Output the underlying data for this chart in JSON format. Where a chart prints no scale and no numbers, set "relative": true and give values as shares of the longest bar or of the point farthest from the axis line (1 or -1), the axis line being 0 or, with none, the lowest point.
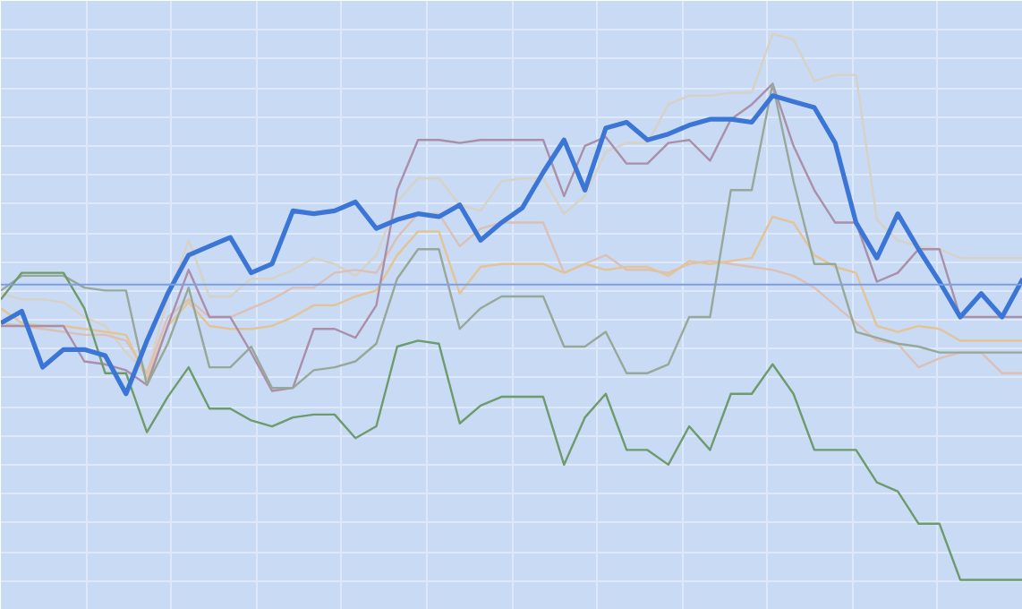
{
  "chart_data": {
    "type": "line",
    "relative": true,
    "grid": true,
    "ref_lines": [
      {
        "axis": "y",
        "value": 0,
        "color": "#7b9fe2"
      }
    ],
    "categories": [
      null,
      null,
      null,
      null,
      null,
      null,
      null,
      null,
      null,
      null,
      null,
      null,
      null,
      null,
      null,
      null,
      null,
      null,
      null,
      null,
      null,
      null,
      null,
      null,
      null,
      null,
      null,
      null,
      null,
      null,
      null,
      null,
      null,
      null,
      null,
      null,
      null,
      null,
      null,
      null,
      null,
      null,
      null,
      null,
      null,
      null,
      null,
      null,
      null,
      null
    ],
    "series": [
      {
        "color": "#d6d2c6",
        "values": [
          -0.03,
          -0.05,
          -0.05,
          -0.06,
          -0.11,
          -0.14,
          -0.23,
          -0.3,
          -0.05,
          0.15,
          -0.04,
          -0.04,
          0.02,
          0.02,
          0.05,
          0.09,
          0.07,
          0.03,
          0.1,
          0.28,
          0.36,
          0.36,
          0.27,
          0.25,
          0.35,
          0.36,
          0.36,
          0.24,
          0.3,
          0.45,
          0.48,
          0.48,
          0.61,
          0.64,
          0.64,
          0.65,
          0.65,
          0.85,
          0.83,
          0.69,
          0.71,
          0.71,
          0.22,
          0.15,
          0.13,
          0.12,
          0.09,
          0.09,
          0.09,
          0.09
        ]
      },
      {
        "color": "#dcc0b6",
        "values": [
          -0.13,
          -0.14,
          -0.15,
          -0.16,
          -0.17,
          -0.17,
          -0.19,
          -0.3,
          -0.11,
          -0.05,
          -0.11,
          -0.11,
          -0.08,
          -0.05,
          -0.01,
          -0.01,
          0.04,
          0.05,
          0.04,
          0.16,
          0.24,
          0.24,
          0.13,
          0.19,
          0.21,
          0.21,
          0.21,
          0.04,
          0.07,
          0.1,
          0.05,
          0.05,
          0.04,
          0.07,
          0.08,
          0.07,
          0.06,
          0.05,
          0.03,
          -0.01,
          -0.07,
          -0.13,
          -0.19,
          -0.2,
          -0.28,
          -0.25,
          -0.23,
          -0.23,
          -0.3,
          -0.3
        ]
      },
      {
        "color": "#e2c496",
        "values": [
          -0.08,
          -0.13,
          -0.14,
          -0.14,
          -0.15,
          -0.16,
          -0.17,
          -0.32,
          -0.14,
          -0.06,
          -0.14,
          -0.15,
          -0.15,
          -0.14,
          -0.11,
          -0.07,
          -0.07,
          -0.04,
          -0.02,
          0.1,
          0.18,
          0.18,
          -0.03,
          0.06,
          0.07,
          0.07,
          0.07,
          0.04,
          0.07,
          0.05,
          0.06,
          0.06,
          0.03,
          0.08,
          0.07,
          0.08,
          0.09,
          0.23,
          0.21,
          0.1,
          0.06,
          0.04,
          -0.14,
          -0.16,
          -0.14,
          -0.15,
          -0.19,
          -0.19,
          -0.19,
          -0.19
        ]
      },
      {
        "color": "#a98fa9",
        "values": [
          -0.14,
          -0.14,
          -0.14,
          -0.14,
          -0.26,
          -0.27,
          -0.29,
          -0.34,
          -0.14,
          0.05,
          -0.11,
          -0.11,
          -0.23,
          -0.36,
          -0.35,
          -0.15,
          -0.15,
          -0.18,
          -0.07,
          0.32,
          0.49,
          0.49,
          0.48,
          0.49,
          0.49,
          0.49,
          0.49,
          0.3,
          0.47,
          0.5,
          0.41,
          0.41,
          0.48,
          0.49,
          0.42,
          0.56,
          0.61,
          0.68,
          0.47,
          0.32,
          0.21,
          0.21,
          0.01,
          0.04,
          0.12,
          0.12,
          -0.11,
          -0.11,
          -0.11,
          -0.11
        ]
      },
      {
        "color": "#98a898",
        "values": [
          -0.02,
          0.03,
          0.03,
          0.03,
          -0.01,
          -0.02,
          -0.02,
          -0.34,
          -0.2,
          -0.01,
          -0.28,
          -0.28,
          -0.21,
          -0.35,
          -0.35,
          -0.29,
          -0.28,
          -0.26,
          -0.2,
          0.02,
          0.12,
          0.12,
          -0.15,
          -0.08,
          -0.04,
          -0.04,
          -0.04,
          -0.21,
          -0.21,
          -0.16,
          -0.3,
          -0.3,
          -0.27,
          -0.11,
          -0.11,
          0.32,
          0.32,
          0.68,
          0.35,
          0.07,
          0.07,
          -0.16,
          -0.18,
          -0.2,
          -0.21,
          -0.23,
          -0.23,
          -0.23,
          -0.23,
          -0.23
        ]
      },
      {
        "color": "#6e9a6c",
        "values": [
          -0.05,
          0.04,
          0.04,
          0.04,
          -0.08,
          -0.3,
          -0.3,
          -0.5,
          -0.38,
          -0.28,
          -0.42,
          -0.42,
          -0.46,
          -0.48,
          -0.45,
          -0.44,
          -0.44,
          -0.52,
          -0.48,
          -0.21,
          -0.19,
          -0.2,
          -0.47,
          -0.41,
          -0.38,
          -0.38,
          -0.38,
          -0.61,
          -0.45,
          -0.37,
          -0.56,
          -0.56,
          -0.61,
          -0.48,
          -0.56,
          -0.37,
          -0.37,
          -0.27,
          -0.37,
          -0.56,
          -0.56,
          -0.56,
          -0.67,
          -0.7,
          -0.81,
          -0.81,
          -1,
          -1,
          -1,
          -1
        ]
      },
      {
        "color": "#3b76d6",
        "values": [
          -0.13,
          -0.09,
          -0.28,
          -0.22,
          -0.22,
          -0.24,
          -0.37,
          -0.19,
          -0.03,
          0.1,
          0.13,
          0.16,
          0.04,
          0.07,
          0.25,
          0.24,
          0.25,
          0.28,
          0.19,
          0.22,
          0.24,
          0.23,
          0.27,
          0.15,
          0.21,
          0.26,
          0.38,
          0.49,
          0.32,
          0.53,
          0.55,
          0.49,
          0.51,
          0.54,
          0.56,
          0.56,
          0.55,
          0.64,
          0.62,
          0.6,
          0.48,
          0.21,
          0.09,
          0.24,
          0.12,
          0.01,
          -0.11,
          -0.03,
          -0.11,
          0.02
        ]
      }
    ]
  }
}
